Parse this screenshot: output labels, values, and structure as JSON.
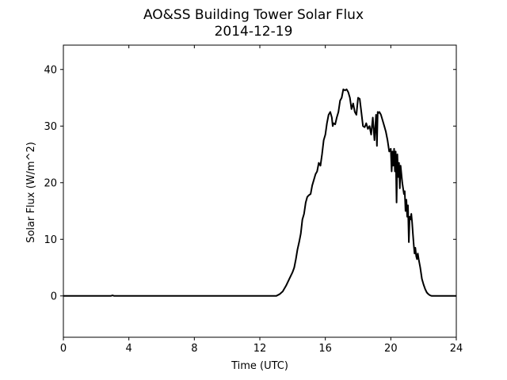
{
  "chart_data": {
    "type": "line",
    "title": "AO&SS Building Tower Solar Flux",
    "subtitle": "2014-12-19",
    "xlabel": "Time (UTC)",
    "ylabel": "Solar Flux (W/m^2)",
    "xlim": [
      0,
      24
    ],
    "ylim": [
      -7.3,
      44.3
    ],
    "xticks": [
      0,
      4,
      8,
      12,
      16,
      20,
      24
    ],
    "yticks": [
      0,
      10,
      20,
      30,
      40
    ],
    "grid": false,
    "series": [
      {
        "color": "#000000",
        "x": [
          0,
          2.9,
          3.0,
          3.1,
          12.5,
          13.0,
          13.2,
          13.4,
          13.6,
          13.8,
          14.0,
          14.1,
          14.2,
          14.3,
          14.4,
          14.5,
          14.6,
          14.7,
          14.8,
          14.9,
          15.0,
          15.1,
          15.2,
          15.3,
          15.4,
          15.5,
          15.6,
          15.7,
          15.8,
          15.9,
          16.0,
          16.1,
          16.2,
          16.3,
          16.4,
          16.45,
          16.5,
          16.6,
          16.7,
          16.8,
          16.9,
          17.0,
          17.1,
          17.2,
          17.3,
          17.4,
          17.5,
          17.6,
          17.7,
          17.8,
          17.9,
          18.0,
          18.1,
          18.2,
          18.3,
          18.4,
          18.5,
          18.6,
          18.7,
          18.8,
          18.9,
          19.0,
          19.1,
          19.15,
          19.2,
          19.25,
          19.3,
          19.4,
          19.5,
          19.6,
          19.7,
          19.8,
          19.9,
          20.0,
          20.05,
          20.1,
          20.15,
          20.2,
          20.25,
          20.3,
          20.35,
          20.4,
          20.45,
          20.5,
          20.55,
          20.6,
          20.7,
          20.8,
          20.85,
          20.9,
          20.95,
          21.0,
          21.05,
          21.1,
          21.15,
          21.2,
          21.25,
          21.3,
          21.35,
          21.4,
          21.45,
          21.5,
          21.55,
          21.6,
          21.65,
          21.7,
          21.8,
          21.9,
          22.0,
          22.1,
          22.2,
          22.3,
          22.4,
          22.5,
          22.6,
          22.8,
          23.0,
          24.0
        ],
        "y": [
          0,
          0,
          0.1,
          0,
          0,
          0,
          0.3,
          0.8,
          1.8,
          3.0,
          4.2,
          5.0,
          6.5,
          8.2,
          9.5,
          11.0,
          13.5,
          14.5,
          16.5,
          17.5,
          17.8,
          18.0,
          19.5,
          20.5,
          21.5,
          22.0,
          23.5,
          23.0,
          25.0,
          27.5,
          28.5,
          30.5,
          32.0,
          32.5,
          31.5,
          30.0,
          30.5,
          30.3,
          31.5,
          32.5,
          34.5,
          35.0,
          36.5,
          36.3,
          36.5,
          36.0,
          35.0,
          33.0,
          34.0,
          32.5,
          32.0,
          35.0,
          34.8,
          32.5,
          30.0,
          29.8,
          30.5,
          29.5,
          30.0,
          28.5,
          31.5,
          27.5,
          32.0,
          26.5,
          32.5,
          32.3,
          32.5,
          32.0,
          31.0,
          30.0,
          29.0,
          27.5,
          25.5,
          26.0,
          22.0,
          25.5,
          23.0,
          26.0,
          22.0,
          25.5,
          16.5,
          25.0,
          21.0,
          23.5,
          19.0,
          23.0,
          20.0,
          18.0,
          18.5,
          15.0,
          17.0,
          14.0,
          16.0,
          9.5,
          14.0,
          13.5,
          14.5,
          13.0,
          11.0,
          9.0,
          7.5,
          8.5,
          7.0,
          6.5,
          7.5,
          6.5,
          5.0,
          3.0,
          2.0,
          1.2,
          0.6,
          0.3,
          0.1,
          0,
          0,
          0,
          0,
          0
        ]
      }
    ]
  }
}
